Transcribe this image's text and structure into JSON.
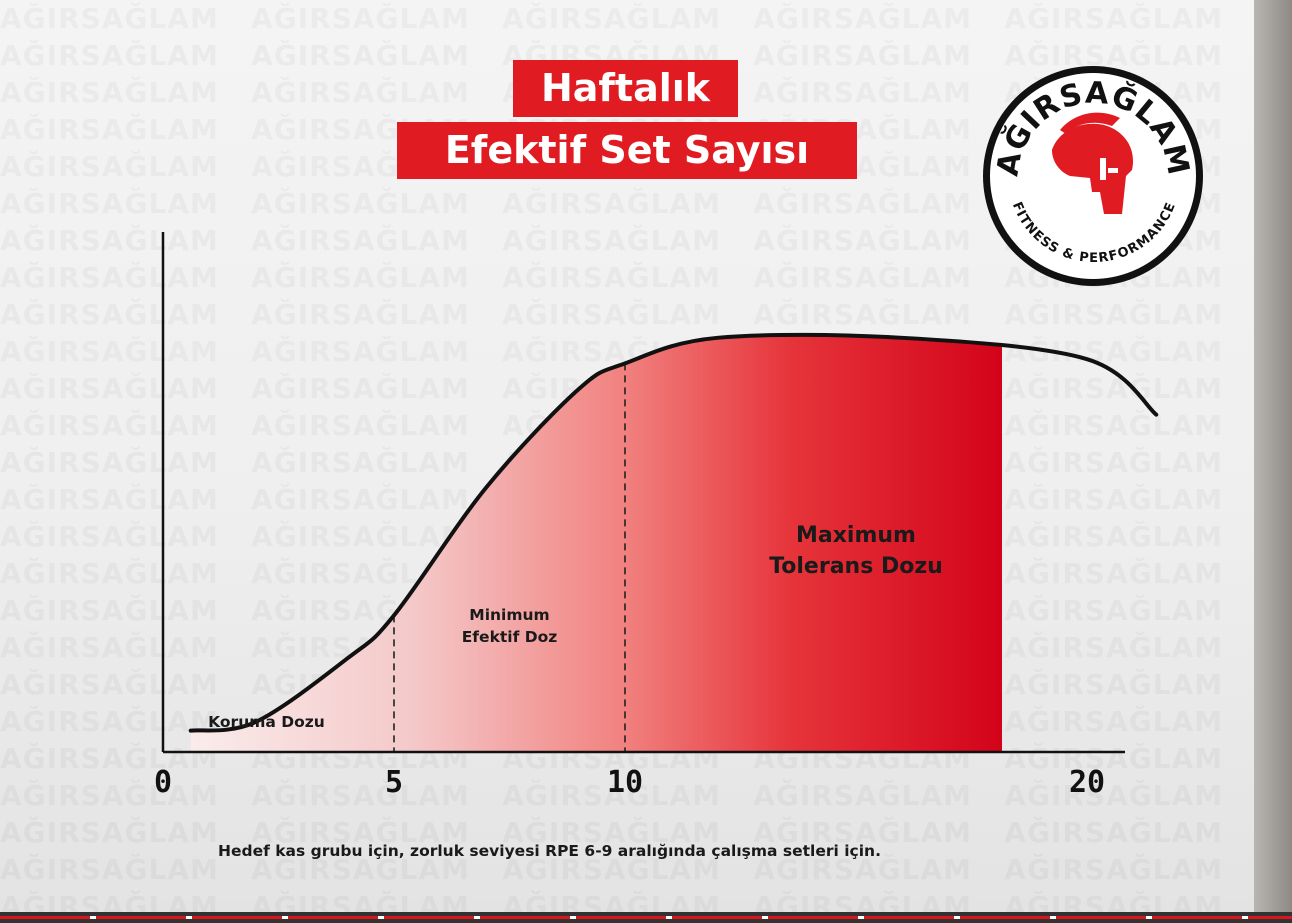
{
  "title": {
    "line1": "Haftalık",
    "line2": "Efektif Set Sayısı"
  },
  "logo": {
    "brand": "AĞIRSAĞLAM",
    "tagline": "FITNESS & PERFORMANCE",
    "icon": "spartan-helmet-icon",
    "accent": "#e01b22"
  },
  "watermark_text": "AĞIRSAĞLAM",
  "chart_data": {
    "type": "area",
    "title": "Haftalık Efektif Set Sayısı",
    "xlabel": "",
    "ylabel": "",
    "x_ticks": [
      "0",
      "5",
      "10",
      "20"
    ],
    "xlim": [
      0,
      21.5
    ],
    "grid": false,
    "curve": {
      "x": [
        0.6,
        2,
        4,
        5,
        7,
        9,
        10,
        12,
        16,
        20,
        21.5
      ],
      "y": [
        0.05,
        0.07,
        0.22,
        0.32,
        0.62,
        0.85,
        0.91,
        0.97,
        0.97,
        0.92,
        0.79
      ]
    },
    "zones": [
      {
        "label": "Koruma Dozu",
        "from": 0,
        "to": 5
      },
      {
        "label": "Minimum\nEfektif Doz",
        "from": 5,
        "to": 10
      },
      {
        "label": "Maximum\nTolerans Dozu",
        "from": 10,
        "to": 20
      }
    ],
    "colors": {
      "fill_light": "#f7dede",
      "fill_dark": "#d9071a",
      "curve": "#111111"
    }
  },
  "footnote": "Hedef kas grubu için, zorluk seviyesi RPE 6-9 aralığında çalışma setleri için."
}
